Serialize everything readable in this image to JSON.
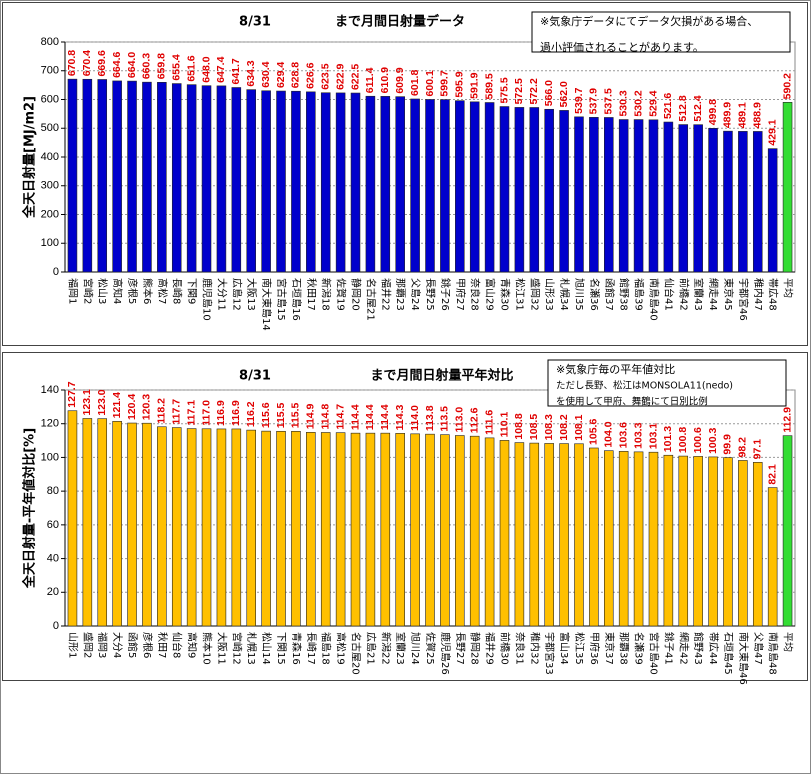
{
  "chart_data": [
    {
      "type": "bar",
      "title": "8/31",
      "title_suffix": "まで月間日射量データ",
      "annotation": [
        "※気象庁データにてデータ欠損がある場合、",
        "過小評価されることがあります。"
      ],
      "y_label": "全天日射量[MJ/m2]",
      "categories": [
        "福岡1",
        "宮崎2",
        "松山3",
        "高知4",
        "彦根5",
        "熊本6",
        "高松7",
        "長崎8",
        "下関9",
        "鹿児島10",
        "大分11",
        "広島12",
        "大阪13",
        "南大東島14",
        "宮古島15",
        "石垣島16",
        "秋田17",
        "新潟18",
        "佐賀19",
        "静岡20",
        "名古屋21",
        "福井22",
        "那覇23",
        "父島24",
        "長野25",
        "銚子26",
        "甲府27",
        "奈良28",
        "富山29",
        "青森30",
        "松江31",
        "盛岡32",
        "山形33",
        "札幌34",
        "旭川35",
        "名瀬36",
        "函館37",
        "館野38",
        "福島39",
        "南鳥島40",
        "仙台41",
        "前橋42",
        "室蘭43",
        "網走44",
        "東京45",
        "宇都宮46",
        "稚内47",
        "帯広48",
        "平均"
      ],
      "values": [
        670.8,
        670.4,
        669.6,
        664.6,
        664.0,
        660.3,
        659.8,
        655.4,
        651.6,
        648.0,
        647.4,
        641.7,
        634.3,
        630.4,
        629.4,
        628.8,
        626.6,
        623.5,
        622.9,
        622.5,
        611.4,
        610.9,
        609.9,
        601.8,
        600.1,
        599.7,
        595.9,
        591.9,
        589.5,
        575.5,
        572.5,
        572.2,
        566.0,
        562.0,
        539.7,
        537.9,
        537.5,
        530.3,
        530.2,
        529.4,
        521.6,
        512.8,
        512.4,
        499.8,
        489.9,
        489.1,
        488.9,
        429.1,
        590.2
      ],
      "value_labels": [
        "670.8",
        "670.4",
        "669.6",
        "664.6",
        "664.0",
        "660.3",
        "659.8",
        "655.4",
        "651.6",
        "648.0",
        "647.4",
        "641.7",
        "634.3",
        "630.4",
        "629.4",
        "628.8",
        "626.6",
        "623.5",
        "622.9",
        "622.5",
        "611.4",
        "610.9",
        "609.9",
        "601.8",
        "600.1",
        "599.7",
        "595.9",
        "591.9",
        "589.5",
        "575.5",
        "572.5",
        "572.2",
        "566.0",
        "562.0",
        "539.7",
        "537.9",
        "537.5",
        "530.3",
        "530.2",
        "529.4",
        "521.6",
        "512.8",
        "512.4",
        "499.8",
        "489.9",
        "489.1",
        "488.9",
        "429.1",
        "590.2"
      ],
      "colors": [
        "#0000cc",
        "#0000cc",
        "#0000cc",
        "#0000cc",
        "#0000cc",
        "#0000cc",
        "#0000cc",
        "#0000cc",
        "#0000cc",
        "#0000cc",
        "#0000cc",
        "#0000cc",
        "#0000cc",
        "#0000cc",
        "#0000cc",
        "#0000cc",
        "#0000cc",
        "#0000cc",
        "#0000cc",
        "#0000cc",
        "#0000cc",
        "#0000cc",
        "#0000cc",
        "#0000cc",
        "#0000cc",
        "#0000cc",
        "#0000cc",
        "#0000cc",
        "#0000cc",
        "#0000cc",
        "#0000cc",
        "#0000cc",
        "#0000cc",
        "#0000cc",
        "#0000cc",
        "#0000cc",
        "#0000cc",
        "#0000cc",
        "#0000cc",
        "#0000cc",
        "#0000cc",
        "#0000cc",
        "#0000cc",
        "#0000cc",
        "#0000cc",
        "#0000cc",
        "#0000cc",
        "#0000cc",
        "#33dd33"
      ],
      "ylim": [
        0,
        800
      ],
      "yticks": [
        0,
        100,
        200,
        300,
        400,
        500,
        600,
        700,
        800
      ],
      "grid": true
    },
    {
      "type": "bar",
      "title": "8/31",
      "title_suffix": "まで月間日射量平年対比",
      "annotation": [
        "※気象庁毎の平年値対比",
        "ただし長野、松江はMONSOLA11(nedo)",
        "を使用して甲府、舞鶴にて日別比例"
      ],
      "y_label": "全天日射量-平年値対比[%]",
      "categories": [
        "山形1",
        "盛岡2",
        "福岡3",
        "大分4",
        "函館5",
        "彦根6",
        "秋田7",
        "仙台8",
        "高知9",
        "熊本10",
        "大阪11",
        "宮崎12",
        "札幌13",
        "松山14",
        "下関15",
        "青森16",
        "長崎17",
        "福島18",
        "高松19",
        "名古屋20",
        "広島21",
        "新潟22",
        "室蘭23",
        "旭川24",
        "佐賀25",
        "鹿児島26",
        "長野27",
        "静岡28",
        "福井29",
        "前橋30",
        "奈良31",
        "稚内32",
        "宇都宮33",
        "富山34",
        "松江35",
        "甲府36",
        "東京37",
        "那覇38",
        "名瀬39",
        "宮古島40",
        "銚子41",
        "網走42",
        "館野43",
        "帯広44",
        "石垣島45",
        "南大東島46",
        "父島47",
        "南鳥島48",
        "平均"
      ],
      "values": [
        127.7,
        123.1,
        123.0,
        121.4,
        120.4,
        120.3,
        118.2,
        117.7,
        117.1,
        117.0,
        116.9,
        116.9,
        116.2,
        115.6,
        115.5,
        115.5,
        114.9,
        114.8,
        114.7,
        114.4,
        114.4,
        114.4,
        114.3,
        114.0,
        113.8,
        113.5,
        113.0,
        112.6,
        111.6,
        110.1,
        108.8,
        108.5,
        108.3,
        108.2,
        108.1,
        105.6,
        104.0,
        103.6,
        103.3,
        103.1,
        101.3,
        100.8,
        100.6,
        100.3,
        99.9,
        98.2,
        97.1,
        82.1,
        112.9
      ],
      "value_labels": [
        "127.7",
        "123.1",
        "123.0",
        "121.4",
        "120.4",
        "120.3",
        "118.2",
        "117.7",
        "117.1",
        "117.0",
        "116.9",
        "116.9",
        "116.2",
        "115.6",
        "115.5",
        "115.5",
        "114.9",
        "114.8",
        "114.7",
        "114.4",
        "114.4",
        "114.4",
        "114.3",
        "114.0",
        "113.8",
        "113.5",
        "113.0",
        "112.6",
        "111.6",
        "110.1",
        "108.8",
        "108.5",
        "108.3",
        "108.2",
        "108.1",
        "105.6",
        "104.0",
        "103.6",
        "103.3",
        "103.1",
        "101.3",
        "100.8",
        "100.6",
        "100.3",
        "99.9",
        "98.2",
        "97.1",
        "82.1",
        "112.9"
      ],
      "colors": [
        "#ffc000",
        "#ffc000",
        "#ffc000",
        "#ffc000",
        "#ffc000",
        "#ffc000",
        "#ffc000",
        "#ffc000",
        "#ffc000",
        "#ffc000",
        "#ffc000",
        "#ffc000",
        "#ffc000",
        "#ffc000",
        "#ffc000",
        "#ffc000",
        "#ffc000",
        "#ffc000",
        "#ffc000",
        "#ffc000",
        "#ffc000",
        "#ffc000",
        "#ffc000",
        "#ffc000",
        "#ffc000",
        "#ffc000",
        "#ffc000",
        "#ffc000",
        "#ffc000",
        "#ffc000",
        "#ffc000",
        "#ffc000",
        "#ffc000",
        "#ffc000",
        "#ffc000",
        "#ffc000",
        "#ffc000",
        "#ffc000",
        "#ffc000",
        "#ffc000",
        "#ffc000",
        "#ffc000",
        "#ffc000",
        "#ffc000",
        "#ffc000",
        "#ffc000",
        "#ffc000",
        "#ffc000",
        "#33dd33"
      ],
      "ylim": [
        0,
        140
      ],
      "yticks": [
        0,
        20,
        40,
        60,
        80,
        100,
        120,
        140
      ],
      "grid": true
    }
  ]
}
